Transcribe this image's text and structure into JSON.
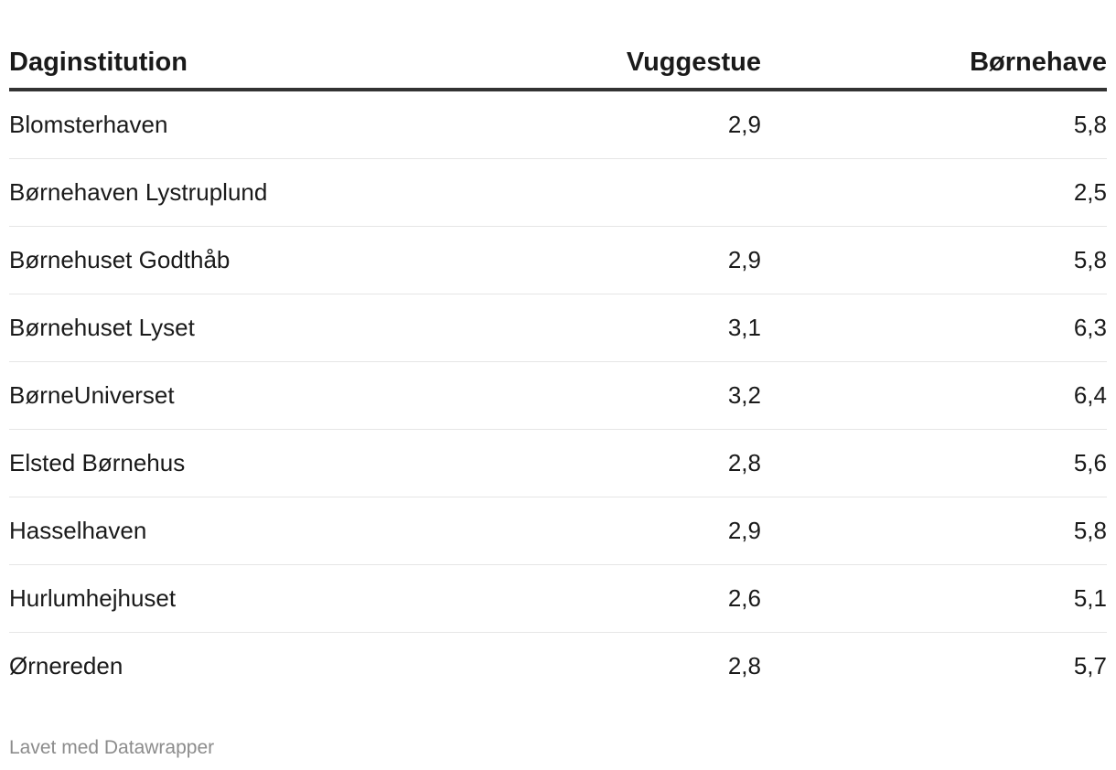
{
  "chart_data": {
    "type": "table",
    "columns": [
      "Daginstitution",
      "Vuggestue",
      "Børnehave"
    ],
    "rows": [
      {
        "name": "Blomsterhaven",
        "vuggestue": "2,9",
        "bornehave": "5,8"
      },
      {
        "name": "Børnehaven Lystruplund",
        "vuggestue": "",
        "bornehave": "2,5"
      },
      {
        "name": "Børnehuset Godthåb",
        "vuggestue": "2,9",
        "bornehave": "5,8"
      },
      {
        "name": "Børnehuset Lyset",
        "vuggestue": "3,1",
        "bornehave": "6,3"
      },
      {
        "name": "BørneUniverset",
        "vuggestue": "3,2",
        "bornehave": "6,4"
      },
      {
        "name": "Elsted Børnehus",
        "vuggestue": "2,8",
        "bornehave": "5,6"
      },
      {
        "name": "Hasselhaven",
        "vuggestue": "2,9",
        "bornehave": "5,8"
      },
      {
        "name": "Hurlumhejhuset",
        "vuggestue": "2,6",
        "bornehave": "5,1"
      },
      {
        "name": "Ørnereden",
        "vuggestue": "2,8",
        "bornehave": "5,7"
      }
    ]
  },
  "footer": {
    "credit": "Lavet med Datawrapper"
  },
  "colors": {
    "text": "#1a1a1a",
    "header_rule": "#333333",
    "row_rule": "#e6e6e6",
    "footer_text": "#8c8c8c"
  }
}
